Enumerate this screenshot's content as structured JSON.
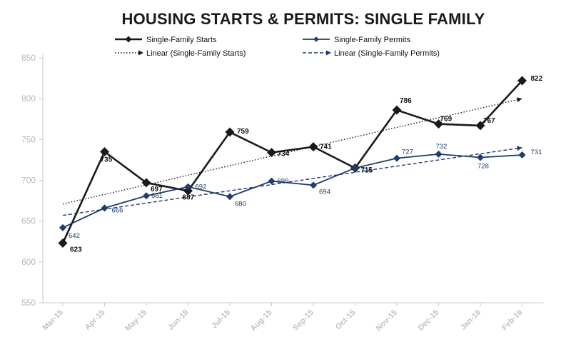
{
  "chart_data": {
    "type": "line",
    "title": "HOUSING STARTS & PERMITS: SINGLE FAMILY",
    "categories": [
      "Mar-15",
      "Apr-15",
      "May-15",
      "Jun-15",
      "Jul-15",
      "Aug-15",
      "Sep-15",
      "Oct-15",
      "Nov-15",
      "Dec-15",
      "Jan-16",
      "Feb-16"
    ],
    "series": [
      {
        "name": "Single-Family Starts",
        "values": [
          623,
          735,
          697,
          687,
          759,
          734,
          741,
          715,
          786,
          769,
          767,
          822
        ],
        "color": "#1a1a1a",
        "marker": "diamond"
      },
      {
        "name": "Single-Family Permits",
        "values": [
          642,
          666,
          681,
          692,
          680,
          699,
          694,
          715,
          727,
          732,
          728,
          731
        ],
        "color": "#1f3c6e",
        "marker": "diamond"
      }
    ],
    "trendlines": [
      {
        "name": "Linear (Single-Family Starts)",
        "style": "dotted",
        "color": "#1a1a1a",
        "start": 671,
        "end": 800
      },
      {
        "name": "Linear (Single-Family Permits)",
        "style": "dashed",
        "color": "#1f3c6e",
        "start": 657,
        "end": 740
      }
    ],
    "legend_items": [
      "Single-Family Starts",
      "Single-Family Permits",
      "Linear (Single-Family Starts)",
      "Linear (Single-Family Permits)"
    ],
    "ylim": [
      550,
      850
    ],
    "yticks": [
      550,
      600,
      650,
      700,
      750,
      800,
      850
    ],
    "grid": false,
    "legend_position": "top"
  }
}
